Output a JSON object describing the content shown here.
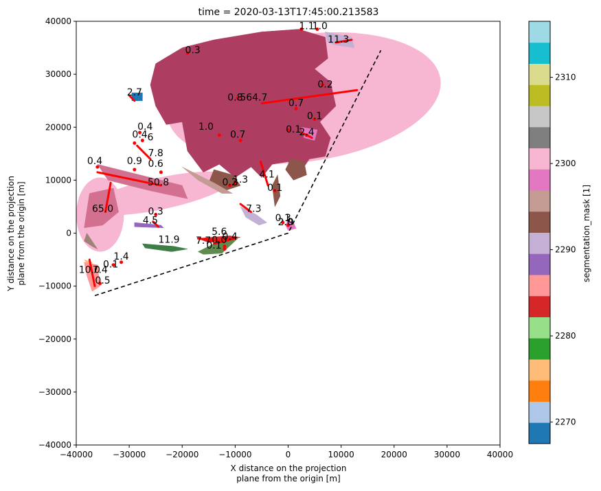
{
  "chart_data": {
    "type": "scatter",
    "title": "time = 2020-03-13T17:45:00.213583",
    "xlabel": [
      "X distance on the projection",
      "plane from the origin [m]"
    ],
    "ylabel": [
      "Y distance on the projection",
      "plane from the origin [m]"
    ],
    "xlim": [
      -40000,
      40000
    ],
    "ylim": [
      -40000,
      40000
    ],
    "xticks": [
      -40000,
      -30000,
      -20000,
      -10000,
      0,
      10000,
      20000,
      30000,
      40000
    ],
    "yticks": [
      -40000,
      -30000,
      -20000,
      -10000,
      0,
      10000,
      20000,
      30000,
      40000
    ],
    "xtick_labels": [
      "−40000",
      "−30000",
      "−20000",
      "−10000",
      "0",
      "10000",
      "20000",
      "30000",
      "40000"
    ],
    "ytick_labels": [
      "−40000",
      "−30000",
      "−20000",
      "−10000",
      "0",
      "10000",
      "20000",
      "30000",
      "40000"
    ],
    "grid": false,
    "colorbar": {
      "label": "segmentation_mask [1]",
      "range": [
        2267.5,
        2316.5
      ],
      "ticks": [
        2270,
        2280,
        2290,
        2300,
        2310
      ],
      "tick_labels": [
        "2270",
        "2280",
        "2290",
        "2300",
        "2310"
      ],
      "colors": [
        "#1f77b4",
        "#aec7e8",
        "#ff7f0e",
        "#ffbb78",
        "#2ca02c",
        "#98df8a",
        "#d62728",
        "#ff9896",
        "#9467bd",
        "#c5b0d5",
        "#8c564b",
        "#c49c94",
        "#e377c2",
        "#f7b6d2",
        "#7f7f7f",
        "#c7c7c7",
        "#bcbd22",
        "#dbdb8d",
        "#17becf",
        "#9edae5"
      ]
    },
    "domain_boundary": [
      [
        -36500,
        -11800
      ],
      [
        0,
        0
      ],
      [
        17500,
        34500
      ]
    ],
    "cells": [
      {
        "type": "ellipse",
        "cx": 3000,
        "cy": 25500,
        "rx": 26000,
        "ry": 12000,
        "angle": -8,
        "color": "#f7b6d2"
      },
      {
        "type": "ellipse",
        "cx": -24000,
        "cy": 7500,
        "rx": 14000,
        "ry": 3000,
        "angle": -12,
        "color": "#f7b6d2"
      },
      {
        "type": "ellipse",
        "cx": -35500,
        "cy": 3500,
        "rx": 4500,
        "ry": 7000,
        "angle": 0,
        "color": "#f7b6d2"
      },
      {
        "type": "polygon",
        "color": "#ad3e62",
        "points": [
          [
            -26000,
            28000
          ],
          [
            -25000,
            32000
          ],
          [
            -20000,
            35000
          ],
          [
            -14000,
            36500
          ],
          [
            -5000,
            38000
          ],
          [
            2000,
            38500
          ],
          [
            7000,
            37000
          ],
          [
            7500,
            33000
          ],
          [
            5000,
            31000
          ],
          [
            8000,
            28500
          ],
          [
            9000,
            24000
          ],
          [
            6000,
            21000
          ],
          [
            8000,
            18000
          ],
          [
            7000,
            14500
          ],
          [
            4000,
            14000
          ],
          [
            2000,
            11000
          ],
          [
            0,
            13500
          ],
          [
            -3000,
            13000
          ],
          [
            -5000,
            10500
          ],
          [
            -7000,
            12500
          ],
          [
            -10000,
            10500
          ],
          [
            -13000,
            13000
          ],
          [
            -16000,
            11500
          ],
          [
            -19000,
            15500
          ],
          [
            -20000,
            21000
          ],
          [
            -23000,
            20500
          ],
          [
            -25000,
            24000
          ]
        ]
      },
      {
        "type": "polygon",
        "color": "#8c564b",
        "points": [
          [
            -14000,
            12000
          ],
          [
            -10500,
            11000
          ],
          [
            -9000,
            9000
          ],
          [
            -12000,
            8000
          ],
          [
            -15000,
            9500
          ]
        ]
      },
      {
        "type": "polygon",
        "color": "#8c564b",
        "points": [
          [
            500,
            14000
          ],
          [
            3000,
            13500
          ],
          [
            3500,
            11000
          ],
          [
            1000,
            10000
          ],
          [
            -500,
            12000
          ]
        ]
      },
      {
        "type": "polygon",
        "color": "#8c564b",
        "points": [
          [
            -2000,
            11000
          ],
          [
            -1500,
            7000
          ],
          [
            -2500,
            5000
          ],
          [
            -3000,
            9000
          ]
        ]
      },
      {
        "type": "polygon",
        "color": "#d3708f",
        "points": [
          [
            -37500,
            7500
          ],
          [
            -33000,
            8500
          ],
          [
            -32000,
            4000
          ],
          [
            -35000,
            1500
          ],
          [
            -38500,
            1000
          ]
        ]
      },
      {
        "type": "polygon",
        "color": "#d3708f",
        "points": [
          [
            -36000,
            13000
          ],
          [
            -28000,
            11000
          ],
          [
            -20000,
            9000
          ],
          [
            -19000,
            6500
          ],
          [
            -26000,
            8000
          ],
          [
            -34000,
            10000
          ]
        ]
      },
      {
        "type": "polygon",
        "color": "#9d8374",
        "points": [
          [
            -38000,
            0
          ],
          [
            -36000,
            -3000
          ],
          [
            -37000,
            -2500
          ],
          [
            -38500,
            -1500
          ]
        ]
      },
      {
        "type": "polygon",
        "color": "#c49c94",
        "points": [
          [
            -20000,
            12500
          ],
          [
            -14000,
            9500
          ],
          [
            -10500,
            7500
          ],
          [
            -12500,
            7500
          ],
          [
            -17000,
            10000
          ]
        ]
      },
      {
        "type": "polygon",
        "color": "#3d7d46",
        "points": [
          [
            -27500,
            -2000
          ],
          [
            -21500,
            -2500
          ],
          [
            -19000,
            -3000
          ],
          [
            -22000,
            -3500
          ],
          [
            -27000,
            -2800
          ]
        ]
      },
      {
        "type": "polygon",
        "color": "#5f8a50",
        "points": [
          [
            -17000,
            -3500
          ],
          [
            -13000,
            -1500
          ],
          [
            -9500,
            -1000
          ],
          [
            -12500,
            -3800
          ],
          [
            -16000,
            -4000
          ]
        ]
      },
      {
        "type": "polygon",
        "color": "#d62728",
        "points": [
          [
            -17000,
            -1000
          ],
          [
            -11000,
            -500
          ],
          [
            -9000,
            -800
          ],
          [
            -15000,
            -1800
          ]
        ]
      },
      {
        "type": "polygon",
        "color": "#9467bd",
        "points": [
          [
            -29000,
            2000
          ],
          [
            -24000,
            1500
          ],
          [
            -23500,
            1000
          ],
          [
            -29000,
            1200
          ]
        ]
      },
      {
        "type": "polygon",
        "color": "#c5b0d5",
        "points": [
          [
            7000,
            38000
          ],
          [
            12000,
            37000
          ],
          [
            12500,
            35000
          ],
          [
            9000,
            35500
          ],
          [
            7500,
            36000
          ]
        ]
      },
      {
        "type": "polygon",
        "color": "#e377c2",
        "points": [
          [
            2500,
            20000
          ],
          [
            5500,
            19500
          ],
          [
            5000,
            17500
          ],
          [
            3000,
            18000
          ]
        ]
      },
      {
        "type": "polygon",
        "color": "#1f77b4",
        "points": [
          [
            -29500,
            26500
          ],
          [
            -27500,
            26500
          ],
          [
            -27500,
            25000
          ],
          [
            -29500,
            25000
          ]
        ]
      },
      {
        "type": "polygon",
        "color": "#ffbb78",
        "points": [
          [
            -38500,
            -5000
          ],
          [
            -37000,
            -5500
          ],
          [
            -37500,
            -6500
          ]
        ]
      },
      {
        "type": "polygon",
        "color": "#ff9896",
        "points": [
          [
            -38500,
            -5500
          ],
          [
            -36000,
            -6000
          ],
          [
            -35500,
            -10000
          ],
          [
            -37000,
            -11000
          ],
          [
            -38000,
            -8000
          ]
        ]
      },
      {
        "type": "polygon",
        "color": "#c5b0d5",
        "points": [
          [
            -9000,
            5000
          ],
          [
            -6000,
            3500
          ],
          [
            -4000,
            2000
          ],
          [
            -5500,
            1500
          ],
          [
            -8000,
            3000
          ]
        ]
      },
      {
        "type": "polygon",
        "color": "#e377c2",
        "points": [
          [
            0,
            2500
          ],
          [
            1000,
            2000
          ],
          [
            1500,
            900
          ],
          [
            0,
            500
          ],
          [
            -500,
            1500
          ]
        ]
      }
    ],
    "tracks": [
      {
        "x": [
          -36000,
          -24000
        ],
        "y": [
          11500,
          9000
        ]
      },
      {
        "x": [
          -5000,
          13000
        ],
        "y": [
          24500,
          27000
        ]
      },
      {
        "x": [
          -34500,
          -33500
        ],
        "y": [
          4000,
          9500
        ]
      },
      {
        "x": [
          -28500,
          -26000
        ],
        "y": [
          16500,
          14000
        ]
      },
      {
        "x": [
          -37500,
          -36500
        ],
        "y": [
          -5000,
          -10000
        ]
      },
      {
        "x": [
          -5200,
          -3800
        ],
        "y": [
          13500,
          9000
        ]
      },
      {
        "x": [
          -9000,
          -7000
        ],
        "y": [
          5500,
          4000
        ]
      },
      {
        "x": [
          9000,
          12000
        ],
        "y": [
          36000,
          36500
        ]
      },
      {
        "x": [
          -25500,
          -24500
        ],
        "y": [
          2200,
          1200
        ]
      },
      {
        "x": [
          -17000,
          -13000
        ],
        "y": [
          -1000,
          -1500
        ]
      },
      {
        "x": [
          -30000,
          -29000
        ],
        "y": [
          26000,
          25000
        ]
      },
      {
        "x": [
          2500,
          4500
        ],
        "y": [
          19000,
          18000
        ]
      },
      {
        "x": [
          -14000,
          -10000
        ],
        "y": [
          -2000,
          -1000
        ]
      }
    ],
    "points": [
      {
        "x": -19000,
        "y": 34000
      },
      {
        "x": -13000,
        "y": 18500
      },
      {
        "x": -9500,
        "y": 25500
      },
      {
        "x": 6500,
        "y": 28000
      },
      {
        "x": 1500,
        "y": 23500
      },
      {
        "x": 5000,
        "y": 21500
      },
      {
        "x": 0,
        "y": 19500
      },
      {
        "x": 3500,
        "y": 18500
      },
      {
        "x": -9000,
        "y": 17500
      },
      {
        "x": -28000,
        "y": 19000
      },
      {
        "x": -27500,
        "y": 17500
      },
      {
        "x": -29000,
        "y": 17000
      },
      {
        "x": -36000,
        "y": 12500
      },
      {
        "x": -29000,
        "y": 12000
      },
      {
        "x": -24000,
        "y": 11500
      },
      {
        "x": -11000,
        "y": 9000
      },
      {
        "x": -10000,
        "y": 9500
      },
      {
        "x": -2500,
        "y": 8000
      },
      {
        "x": -25000,
        "y": 3500
      },
      {
        "x": -1000,
        "y": 2000
      },
      {
        "x": 0,
        "y": 1500
      },
      {
        "x": -12000,
        "y": -2500
      },
      {
        "x": -33000,
        "y": -6000
      },
      {
        "x": -31500,
        "y": -5500
      },
      {
        "x": -35500,
        "y": -9500
      },
      {
        "x": 2500,
        "y": 38500
      },
      {
        "x": 5500,
        "y": 38500
      },
      {
        "x": -12000,
        "y": -3000
      }
    ],
    "annotations": [
      {
        "text": "0.3",
        "x": -18000,
        "y": 34000
      },
      {
        "text": "1.1",
        "x": 3500,
        "y": 38500
      },
      {
        "text": "1.0",
        "x": 6000,
        "y": 38500
      },
      {
        "text": "11.3",
        "x": 9500,
        "y": 36000
      },
      {
        "text": "0.2",
        "x": 7000,
        "y": 27500
      },
      {
        "text": "2.7",
        "x": -29000,
        "y": 26000
      },
      {
        "text": "0.8",
        "x": -10000,
        "y": 25000
      },
      {
        "text": "564.7",
        "x": -6500,
        "y": 25000
      },
      {
        "text": "0.7",
        "x": 1500,
        "y": 24000
      },
      {
        "text": "0.1",
        "x": 5000,
        "y": 21500
      },
      {
        "text": "0.4",
        "x": -27000,
        "y": 19500
      },
      {
        "text": "1.0",
        "x": -15500,
        "y": 19500
      },
      {
        "text": "0.1",
        "x": 1000,
        "y": 19000
      },
      {
        "text": "2.4",
        "x": 3500,
        "y": 18500
      },
      {
        "text": "0.4",
        "x": -28000,
        "y": 18000
      },
      {
        "text": "6",
        "x": -26000,
        "y": 17500
      },
      {
        "text": "0.7",
        "x": -9500,
        "y": 18000
      },
      {
        "text": "7.8",
        "x": -25000,
        "y": 14500
      },
      {
        "text": "0.4",
        "x": -36500,
        "y": 13000
      },
      {
        "text": "0.9",
        "x": -29000,
        "y": 13000
      },
      {
        "text": "0.6",
        "x": -25000,
        "y": 12500
      },
      {
        "text": "4.1",
        "x": -4000,
        "y": 10500
      },
      {
        "text": "1.3",
        "x": -9000,
        "y": 9500
      },
      {
        "text": "0.2",
        "x": -11000,
        "y": 9000
      },
      {
        "text": "3",
        "x": -10000,
        "y": 9000
      },
      {
        "text": "50.8",
        "x": -24500,
        "y": 9000
      },
      {
        "text": "0.1",
        "x": -2500,
        "y": 8000
      },
      {
        "text": "65.0",
        "x": -35000,
        "y": 4000
      },
      {
        "text": "0.3",
        "x": -25000,
        "y": 3500
      },
      {
        "text": "7.3",
        "x": -6500,
        "y": 4000
      },
      {
        "text": "0.1",
        "x": -1000,
        "y": 2300
      },
      {
        "text": "3",
        "x": 0,
        "y": 2300
      },
      {
        "text": "2.0",
        "x": -500,
        "y": 1500
      },
      {
        "text": "9",
        "x": 500,
        "y": 1500
      },
      {
        "text": "4.5",
        "x": -26000,
        "y": 1800
      },
      {
        "text": "5.6",
        "x": -13000,
        "y": -300
      },
      {
        "text": "0.4",
        "x": -11000,
        "y": -1200
      },
      {
        "text": "11.9",
        "x": -22500,
        "y": -1800
      },
      {
        "text": "7.7",
        "x": -16000,
        "y": -2000
      },
      {
        "text": "0.0",
        "x": -13000,
        "y": -1900
      },
      {
        "text": "0.1",
        "x": -14000,
        "y": -2900
      },
      {
        "text": "1.4",
        "x": -31500,
        "y": -5000
      },
      {
        "text": "0.1",
        "x": -33500,
        "y": -6500
      },
      {
        "text": "10.0",
        "x": -37500,
        "y": -7500
      },
      {
        "text": "7.4",
        "x": -35500,
        "y": -7500
      },
      {
        "text": "0.5",
        "x": -35000,
        "y": -9500
      }
    ]
  }
}
